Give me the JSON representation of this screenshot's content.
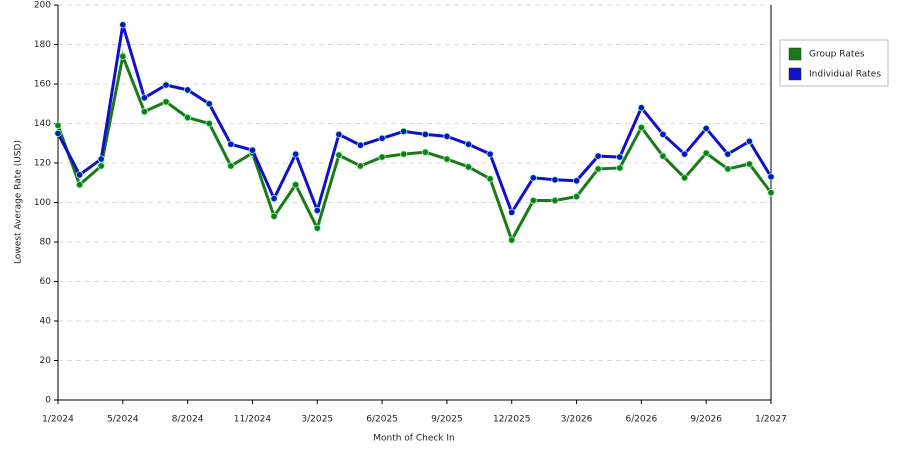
{
  "chart_data": {
    "type": "line",
    "xlabel": "Month of Check In",
    "ylabel": "Lowest Average Rate (USD)",
    "categories": [
      "1/2024",
      null,
      null,
      "5/2024",
      null,
      null,
      "8/2024",
      null,
      null,
      "11/2024",
      null,
      null,
      "3/2025",
      null,
      null,
      "6/2025",
      null,
      null,
      "9/2025",
      null,
      null,
      "12/2025",
      null,
      null,
      "3/2026",
      null,
      null,
      "6/2026",
      null,
      null,
      "9/2026",
      null,
      null,
      "1/2027"
    ],
    "series": [
      {
        "name": "Group Rates",
        "color": "#1a7a1a",
        "values": [
          139,
          109,
          118.5,
          174,
          146,
          151,
          143,
          140,
          118.5,
          125,
          93,
          109,
          87,
          124,
          118.5,
          123,
          124.5,
          125.5,
          122,
          118,
          112,
          81,
          101,
          101,
          103,
          117,
          117.5,
          138,
          123.5,
          112.5,
          125,
          117,
          119.5,
          105
        ]
      },
      {
        "name": "Individual Rates",
        "color": "#1010c8",
        "values": [
          135,
          114,
          122,
          190,
          153,
          159.5,
          157,
          150,
          129.5,
          126.5,
          102,
          124.5,
          96,
          134.5,
          129,
          132.5,
          136,
          134.5,
          133.5,
          129.5,
          124.5,
          95,
          112.5,
          111.5,
          111,
          123.5,
          123,
          148,
          134.5,
          124.5,
          137.5,
          124.5,
          131,
          113
        ]
      }
    ],
    "ylim": [
      0,
      200
    ],
    "yticks": [
      0,
      20,
      40,
      60,
      80,
      100,
      120,
      140,
      160,
      180,
      200
    ],
    "grid": true,
    "legend": "right"
  }
}
